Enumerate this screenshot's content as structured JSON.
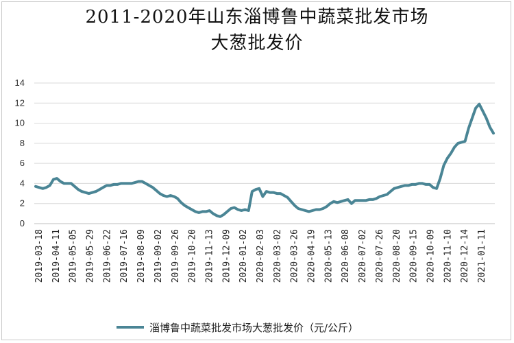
{
  "chart_data": {
    "type": "line",
    "title": [
      "2011-2020年山东淄博鲁中蔬菜批发市场",
      "大葱批发价"
    ],
    "xlabel": "",
    "ylabel": "",
    "ylim": [
      0,
      14
    ],
    "yticks": [
      "0",
      "2",
      "4",
      "6",
      "8",
      "10",
      "12",
      "14"
    ],
    "grid": true,
    "legend_position": "bottom",
    "colors": {
      "series": "#4a8595",
      "grid": "#d9d9d9",
      "axis": "#bfbfbf"
    },
    "x_tick_labels": [
      "2019-03-18",
      "2019-04-11",
      "2019-05-05",
      "2019-05-29",
      "2019-06-22",
      "2019-07-16",
      "2019-08-09",
      "2019-09-02",
      "2019-09-26",
      "2019-10-20",
      "2019-11-13",
      "2019-12-09",
      "2020-01-02",
      "2020-02-03",
      "2020-03-02",
      "2020-03-26",
      "2020-04-19",
      "2020-05-13",
      "2020-06-08",
      "2020-07-02",
      "2020-07-26",
      "2020-08-20",
      "2020-09-15",
      "2020-10-09",
      "2020-11-10",
      "2020-12-14",
      "2021-01-11"
    ],
    "series": [
      {
        "name": "淄博鲁中蔬菜批发市场大葱批发价（元/公斤）",
        "values": [
          3.7,
          3.6,
          3.5,
          3.6,
          3.8,
          4.4,
          4.5,
          4.2,
          4.0,
          4.0,
          4.0,
          3.7,
          3.4,
          3.2,
          3.1,
          3.0,
          3.1,
          3.2,
          3.4,
          3.6,
          3.8,
          3.8,
          3.9,
          3.9,
          4.0,
          4.0,
          4.0,
          4.0,
          4.1,
          4.2,
          4.2,
          4.0,
          3.8,
          3.6,
          3.3,
          3.0,
          2.8,
          2.7,
          2.8,
          2.7,
          2.5,
          2.1,
          1.8,
          1.6,
          1.4,
          1.2,
          1.1,
          1.2,
          1.2,
          1.3,
          1.0,
          0.8,
          0.7,
          0.9,
          1.2,
          1.5,
          1.6,
          1.4,
          1.3,
          1.4,
          1.3,
          3.2,
          3.4,
          3.5,
          2.7,
          3.2,
          3.1,
          3.1,
          3.0,
          3.0,
          2.8,
          2.6,
          2.2,
          1.8,
          1.5,
          1.4,
          1.3,
          1.2,
          1.3,
          1.4,
          1.4,
          1.5,
          1.7,
          2.0,
          2.2,
          2.1,
          2.2,
          2.3,
          2.4,
          2.0,
          2.3,
          2.3,
          2.3,
          2.3,
          2.4,
          2.4,
          2.5,
          2.7,
          2.8,
          2.9,
          3.2,
          3.5,
          3.6,
          3.7,
          3.8,
          3.8,
          3.9,
          3.9,
          4.0,
          4.0,
          3.9,
          3.9,
          3.6,
          3.5,
          4.5,
          5.8,
          6.5,
          7.0,
          7.6,
          8.0,
          8.1,
          8.2,
          9.5,
          10.5,
          11.5,
          11.9,
          11.2,
          10.5,
          9.6,
          9.0
        ]
      }
    ]
  }
}
